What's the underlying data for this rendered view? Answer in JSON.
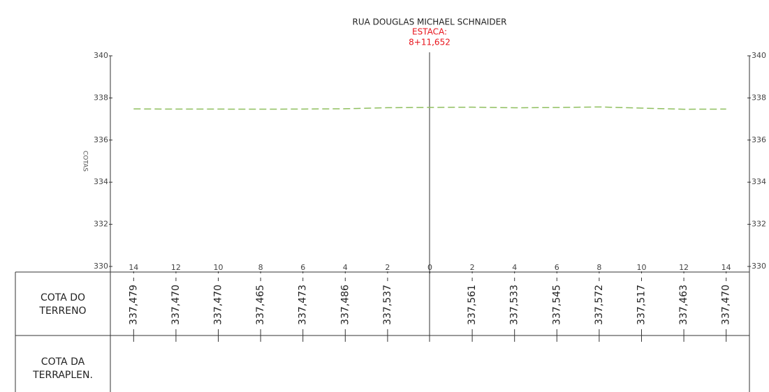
{
  "chart_data": {
    "type": "line",
    "title": "RUA DOUGLAS MICHAEL SCHNAIDER",
    "subtitle": [
      "ESTACA:",
      "8+11,652"
    ],
    "ylabel": "COTAS",
    "x": [
      -14,
      -12,
      -10,
      -8,
      -6,
      -4,
      -2,
      2,
      4,
      6,
      8,
      10,
      12,
      14
    ],
    "series": [
      {
        "color": "#8fbf5f",
        "values": [
          337.479,
          337.47,
          337.47,
          337.465,
          337.473,
          337.486,
          337.537,
          337.561,
          337.533,
          337.545,
          337.572,
          337.517,
          337.463,
          337.47
        ],
        "value_labels": [
          "337,479",
          "337,470",
          "337,470",
          "337,465",
          "337,473",
          "337,486",
          "337,537",
          "337,561",
          "337,533",
          "337,545",
          "337,572",
          "337,517",
          "337,463",
          "337,470"
        ]
      }
    ],
    "xlim": [
      -15.1,
      15.1
    ],
    "xticks": [
      {
        "value": -14,
        "label": "14"
      },
      {
        "value": -12,
        "label": "12"
      },
      {
        "value": -10,
        "label": "10"
      },
      {
        "value": -8,
        "label": "8"
      },
      {
        "value": -6,
        "label": "6"
      },
      {
        "value": -4,
        "label": "4"
      },
      {
        "value": -2,
        "label": "2"
      },
      0,
      2,
      4,
      6,
      8,
      10,
      12,
      14
    ],
    "ylim": [
      330,
      340
    ],
    "yticks": [
      330,
      332,
      334,
      336,
      338,
      340
    ],
    "grid": false,
    "row_labels": [
      [
        "COTA DO",
        "TERRENO"
      ],
      [
        "COTA DA",
        "TERRAPLEN."
      ]
    ]
  }
}
